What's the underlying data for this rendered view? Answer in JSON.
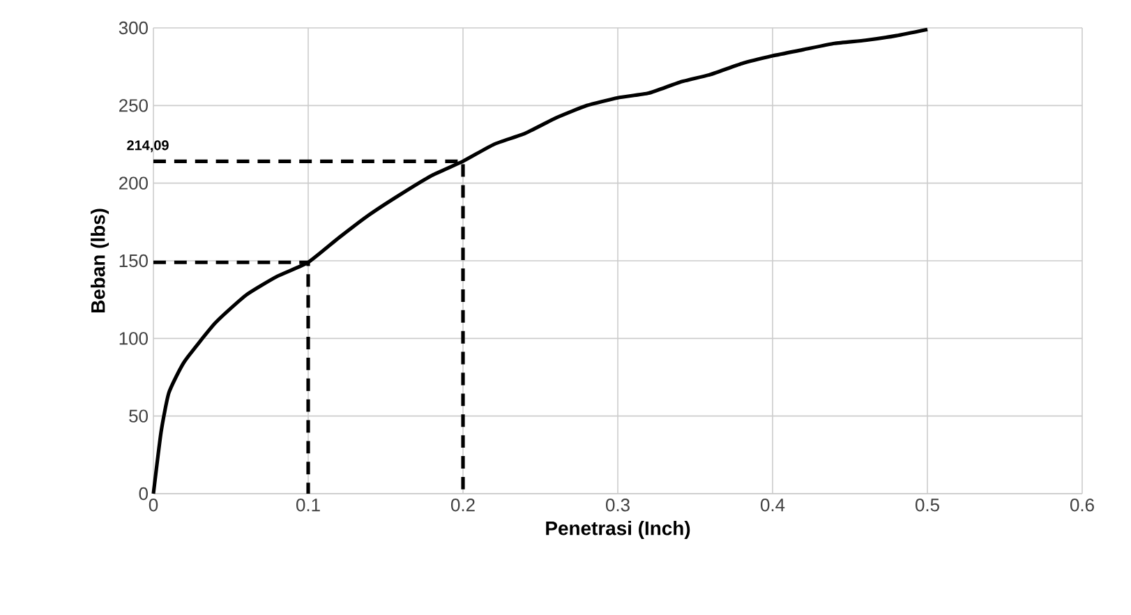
{
  "chart_data": {
    "type": "line",
    "xlabel": "Penetrasi (Inch)",
    "ylabel": "Beban (lbs)",
    "xlim": [
      0,
      0.6
    ],
    "ylim": [
      0,
      300
    ],
    "xticks": [
      0,
      0.1,
      0.2,
      0.3,
      0.4,
      0.5,
      0.6
    ],
    "yticks": [
      0,
      50,
      100,
      150,
      200,
      250,
      300
    ],
    "grid": true,
    "series": [
      {
        "color": "#000000",
        "line_style": "solid",
        "x": [
          0,
          0.005,
          0.01,
          0.02,
          0.04,
          0.06,
          0.08,
          0.1,
          0.12,
          0.14,
          0.16,
          0.18,
          0.2,
          0.22,
          0.24,
          0.26,
          0.28,
          0.3,
          0.32,
          0.34,
          0.36,
          0.38,
          0.4,
          0.42,
          0.44,
          0.46,
          0.48,
          0.5
        ],
        "values": [
          0,
          40,
          65,
          85,
          110,
          128,
          140,
          149,
          165,
          180,
          193,
          205,
          214.09,
          225,
          232,
          242,
          250,
          255,
          258,
          265,
          270,
          277,
          282,
          286,
          290,
          292,
          295,
          299
        ]
      },
      {
        "color": "#000000",
        "line_style": "dashed",
        "x": [
          0,
          0.1,
          0.1
        ],
        "values": [
          149,
          149,
          0
        ]
      },
      {
        "color": "#000000",
        "line_style": "dashed",
        "x": [
          0,
          0.2,
          0.2
        ],
        "values": [
          214.09,
          214.09,
          0
        ]
      }
    ],
    "annotations": [
      {
        "text": "214,09",
        "x": 0,
        "y": 214.09
      }
    ]
  }
}
